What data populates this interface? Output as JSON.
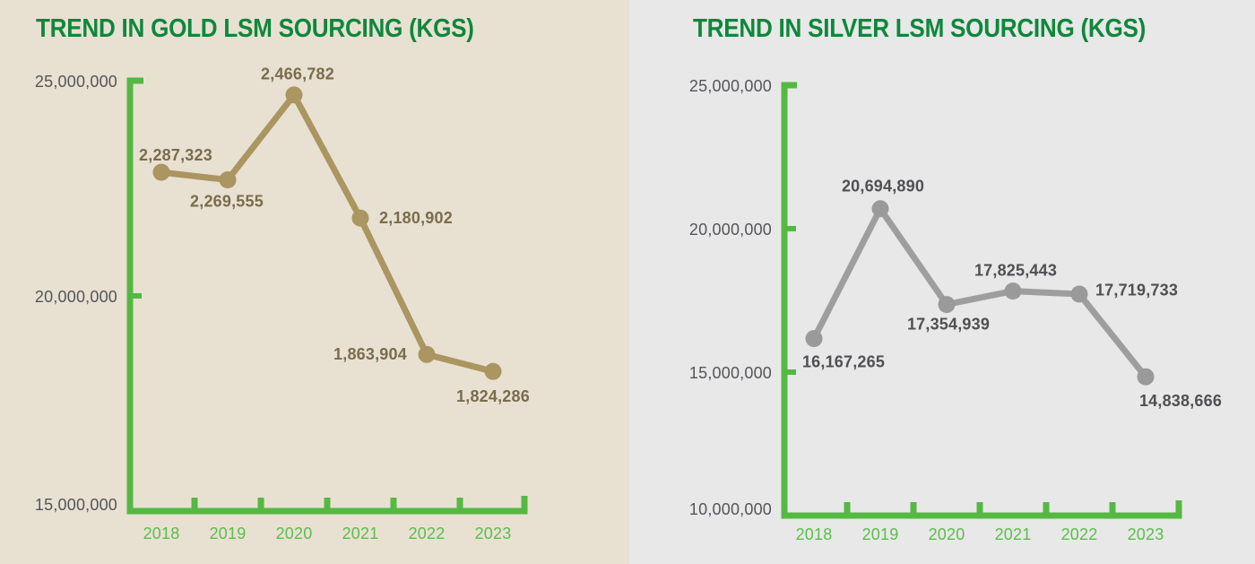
{
  "page": {
    "panel_backgrounds": [
      "#e8e1d2",
      "#e7e8e7"
    ]
  },
  "chart_data": [
    {
      "type": "line",
      "title": "TREND IN GOLD LSM SOURCING (KGS)",
      "categories": [
        "2018",
        "2019",
        "2020",
        "2021",
        "2022",
        "2023"
      ],
      "values": [
        2287323,
        2269555,
        2466782,
        2180902,
        1863904,
        1824286
      ],
      "value_labels": [
        "2,287,323",
        "2,269,555",
        "2,466,782",
        "2,180,902",
        "1,863,904",
        "1,824,286"
      ],
      "label_positions": [
        "above",
        "below",
        "above",
        "right",
        "left",
        "below"
      ],
      "ylim": [
        15000000,
        25000000
      ],
      "yticks": [
        {
          "value": 15000000,
          "label": "15,000,000"
        },
        {
          "value": 20000000,
          "label": "20,000,000"
        },
        {
          "value": 25000000,
          "label": "25,000,000"
        }
      ],
      "plot_value_scale": 10,
      "grid": false,
      "legend": false,
      "xlabel": "",
      "ylabel": "",
      "colors": {
        "line": "#ab9560",
        "point": "#ab9560",
        "value_label": "#7a6c4c",
        "axis": "#55b843",
        "tick_label": "#54555b",
        "year_label": "#5cbd4b",
        "title": "#0e873c"
      }
    },
    {
      "type": "line",
      "title": "TREND IN SILVER LSM SOURCING (KGS)",
      "categories": [
        "2018",
        "2019",
        "2020",
        "2021",
        "2022",
        "2023"
      ],
      "values": [
        16167265,
        20694890,
        17354939,
        17825443,
        17719733,
        14838666
      ],
      "value_labels": [
        "16,167,265",
        "20,694,890",
        "17,354,939",
        "17,825,443",
        "17,719,733",
        "14,838,666"
      ],
      "label_positions": [
        "below",
        "above",
        "below",
        "above",
        "right",
        "below"
      ],
      "ylim": [
        10000000,
        25000000
      ],
      "yticks": [
        {
          "value": 10000000,
          "label": "10,000,000"
        },
        {
          "value": 15000000,
          "label": "15,000,000"
        },
        {
          "value": 20000000,
          "label": "20,000,000"
        },
        {
          "value": 25000000,
          "label": "25,000,000"
        }
      ],
      "plot_value_scale": 1,
      "grid": false,
      "legend": false,
      "xlabel": "",
      "ylabel": "",
      "colors": {
        "line": "#9e9e9f",
        "point": "#9a9a9b",
        "value_label": "#4f4f54",
        "axis": "#55b843",
        "tick_label": "#54555b",
        "year_label": "#5cbd4b",
        "title": "#0e873c"
      }
    }
  ]
}
